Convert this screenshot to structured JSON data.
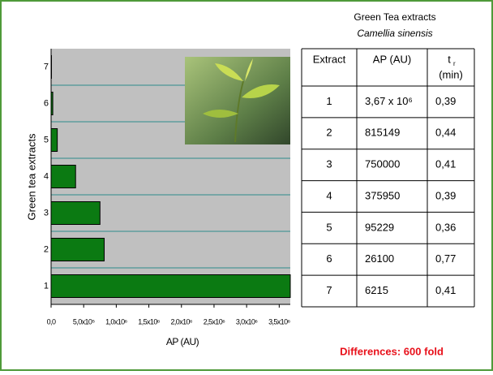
{
  "chart_data": {
    "type": "hbar",
    "categories": [
      "1",
      "2",
      "3",
      "4",
      "5",
      "6",
      "7"
    ],
    "values": [
      3670000,
      815149,
      750000,
      375950,
      95229,
      26100,
      6215
    ],
    "color": "#0b7a12",
    "xlabel": "AP (AU)",
    "ylabel": "Green tea extracts",
    "xlim": [
      0,
      3670000
    ],
    "xticks": [
      {
        "value": 0,
        "label": "0,0"
      },
      {
        "value": 500000,
        "label": "5,0x10⁵"
      },
      {
        "value": 1000000,
        "label": "1,0x10⁶"
      },
      {
        "value": 1500000,
        "label": "1,5x10⁶"
      },
      {
        "value": 2000000,
        "label": "2,0x10⁶"
      },
      {
        "value": 2500000,
        "label": "2,5x10⁶"
      },
      {
        "value": 3000000,
        "label": "3,0x10⁶"
      },
      {
        "value": 3500000,
        "label": "3,5x10⁶"
      }
    ]
  },
  "table": {
    "title": "Green Tea extracts",
    "subtitle": "Camellia sinensis",
    "header": [
      "Extract",
      "AP (AU)",
      {
        "main": "t",
        "sub": "r",
        "unit": "(min)"
      }
    ],
    "rows": [
      [
        "1",
        "3,67 x 10⁶",
        "0,39"
      ],
      [
        "2",
        "815149",
        "0,44"
      ],
      [
        "3",
        "750000",
        "0,41"
      ],
      [
        "4",
        "375950",
        "0,39"
      ],
      [
        "5",
        "95229",
        "0,36"
      ],
      [
        "6",
        "26100",
        "0,77"
      ],
      [
        "7",
        "6215",
        "0,41"
      ]
    ]
  },
  "note": "Differences: 600 fold"
}
